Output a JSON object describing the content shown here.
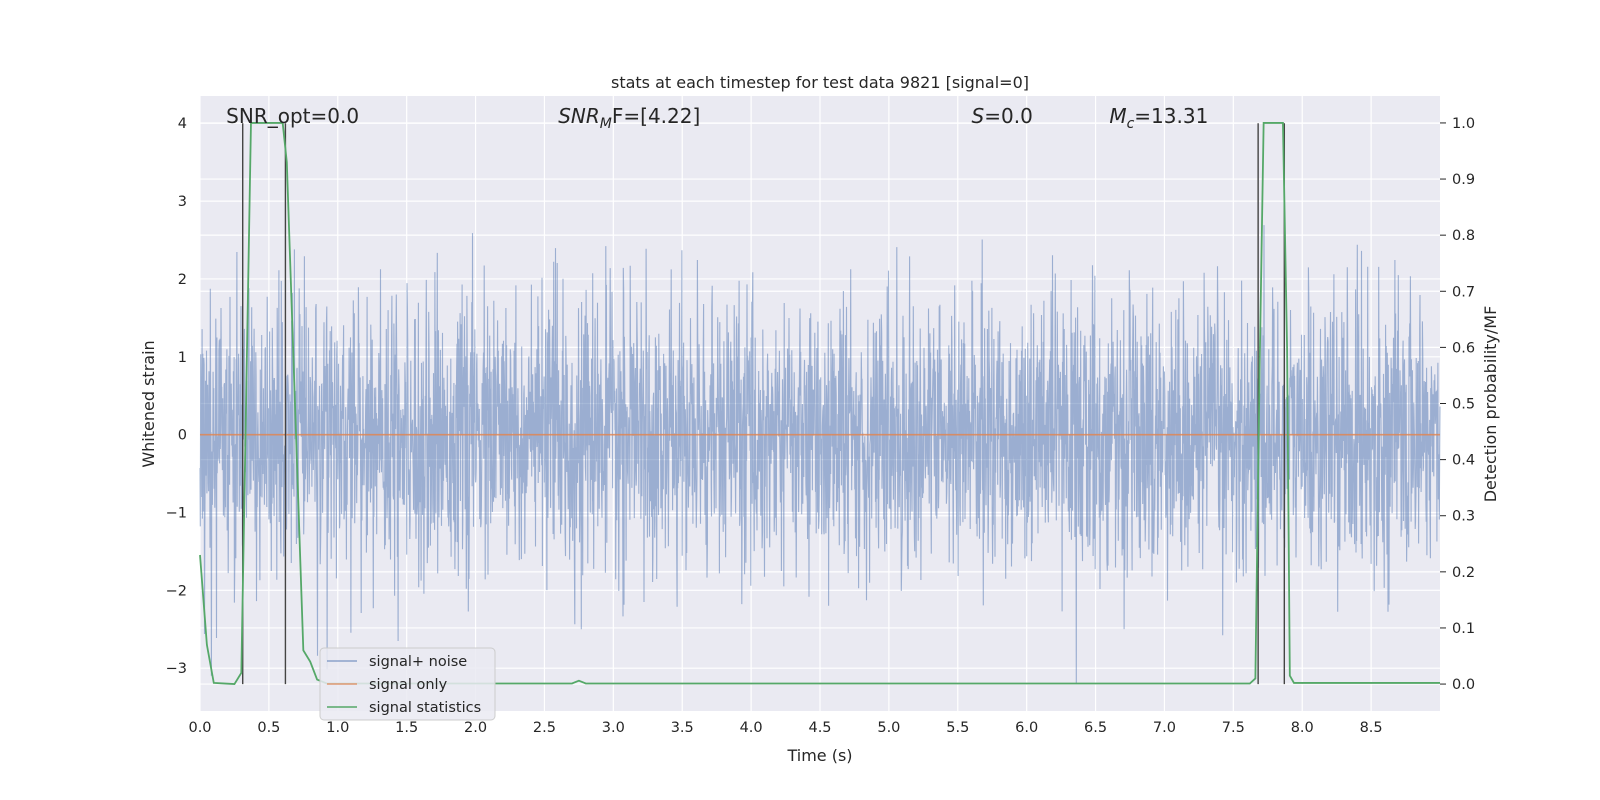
{
  "chart_data": {
    "type": "line",
    "title": "stats at each timestep for test data 9821 [signal=0]",
    "xlabel": "Time (s)",
    "ylabel_left": "Whitened strain",
    "ylabel_right": "Detection probability/MF",
    "xlim": [
      0,
      9.0
    ],
    "ylim_left": [
      -3.55,
      4.35
    ],
    "ylim_right": [
      -0.048,
      1.048
    ],
    "xticks": [
      "0.0",
      "0.5",
      "1.0",
      "1.5",
      "2.0",
      "2.5",
      "3.0",
      "3.5",
      "4.0",
      "4.5",
      "5.0",
      "5.5",
      "6.0",
      "6.5",
      "7.0",
      "7.5",
      "8.0",
      "8.5"
    ],
    "yticks_left": [
      "−3",
      "−2",
      "−1",
      "0",
      "1",
      "2",
      "3",
      "4"
    ],
    "yticks_right": [
      "0.0",
      "0.1",
      "0.2",
      "0.3",
      "0.4",
      "0.5",
      "0.6",
      "0.7",
      "0.8",
      "0.9",
      "1.0"
    ],
    "annotations": [
      {
        "name": "snr-opt",
        "text": "SNR_opt=0.0",
        "x": 0.19
      },
      {
        "name": "snr-mf",
        "prefix": "SNR",
        "sub": "M",
        "suffix": "F=[4.22]",
        "x": 2.6
      },
      {
        "name": "s-value",
        "prefix": "S",
        "suffix": "=0.0",
        "x": 5.6
      },
      {
        "name": "chirp-mass",
        "prefix": "M",
        "sub": "c",
        "suffix": "=13.31",
        "x": 6.6
      }
    ],
    "series": [
      {
        "name": "signal+ noise",
        "color": "#4c72b0",
        "axis": "left",
        "kind": "noise",
        "typical_amplitude": 1.1,
        "max": 3.25,
        "min": -3.2,
        "points_per_second": 400
      },
      {
        "name": "signal only",
        "color": "#dd8452",
        "axis": "left",
        "x": [
          0.0,
          9.0
        ],
        "y": [
          0.0,
          0.0
        ]
      },
      {
        "name": "signal statistics",
        "color": "#55a868",
        "axis": "right",
        "x": [
          0.0,
          0.05,
          0.1,
          0.25,
          0.3,
          0.37,
          0.42,
          0.6,
          0.63,
          0.75,
          0.8,
          0.85,
          0.92,
          1.0,
          2.7,
          2.75,
          2.8,
          3.0,
          7.62,
          7.66,
          7.69,
          7.72,
          7.76,
          7.86,
          7.89,
          7.91,
          7.94,
          8.0,
          9.0
        ],
        "y": [
          0.23,
          0.07,
          0.002,
          0.0,
          0.02,
          1.0,
          1.0,
          1.0,
          0.93,
          0.06,
          0.04,
          0.008,
          0.001,
          0.001,
          0.001,
          0.006,
          0.001,
          0.001,
          0.001,
          0.01,
          0.55,
          1.0,
          1.0,
          1.0,
          0.6,
          0.015,
          0.002,
          0.002,
          0.002
        ]
      }
    ],
    "event_markers": [
      0.31,
      0.62,
      7.68,
      7.87
    ],
    "legend": {
      "position": "lower-left",
      "entries": [
        "signal+ noise",
        "signal only",
        "signal statistics"
      ]
    },
    "grid": true,
    "colors": {
      "background": "#eaeaf2",
      "grid": "#ffffff",
      "noise": "#4c72b0",
      "signal": "#dd8452",
      "stats": "#55a868",
      "marker": "#444444"
    }
  }
}
